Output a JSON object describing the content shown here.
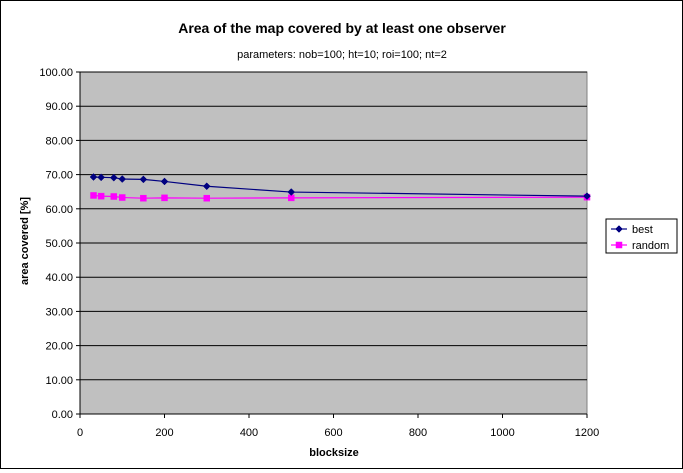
{
  "chart_data": {
    "type": "line",
    "title": "Area of the map covered by at least one observer",
    "subtitle": "parameters: nob=100; ht=10; roi=100; nt=2",
    "xlabel": "blocksize",
    "ylabel": "area covered [%]",
    "xlim": [
      0,
      1200
    ],
    "ylim": [
      0,
      100
    ],
    "x_ticks": [
      0,
      200,
      400,
      600,
      800,
      1000,
      1200
    ],
    "y_ticks": [
      "0.00",
      "10.00",
      "20.00",
      "30.00",
      "40.00",
      "50.00",
      "60.00",
      "70.00",
      "80.00",
      "90.00",
      "100.00"
    ],
    "grid": "horizontal",
    "legend_position": "right",
    "plot_background": "#c0c0c0",
    "series": [
      {
        "name": "best",
        "color": "#000080",
        "marker": "diamond",
        "x": [
          32,
          50,
          80,
          100,
          150,
          200,
          300,
          500,
          1200
        ],
        "y": [
          69.3,
          69.2,
          69.1,
          68.7,
          68.6,
          68.0,
          66.6,
          64.9,
          63.7
        ]
      },
      {
        "name": "random",
        "color": "#ff00ff",
        "marker": "square",
        "x": [
          32,
          50,
          80,
          100,
          150,
          200,
          300,
          500,
          1200
        ],
        "y": [
          63.9,
          63.7,
          63.6,
          63.3,
          63.1,
          63.2,
          63.1,
          63.2,
          63.4
        ]
      }
    ]
  }
}
